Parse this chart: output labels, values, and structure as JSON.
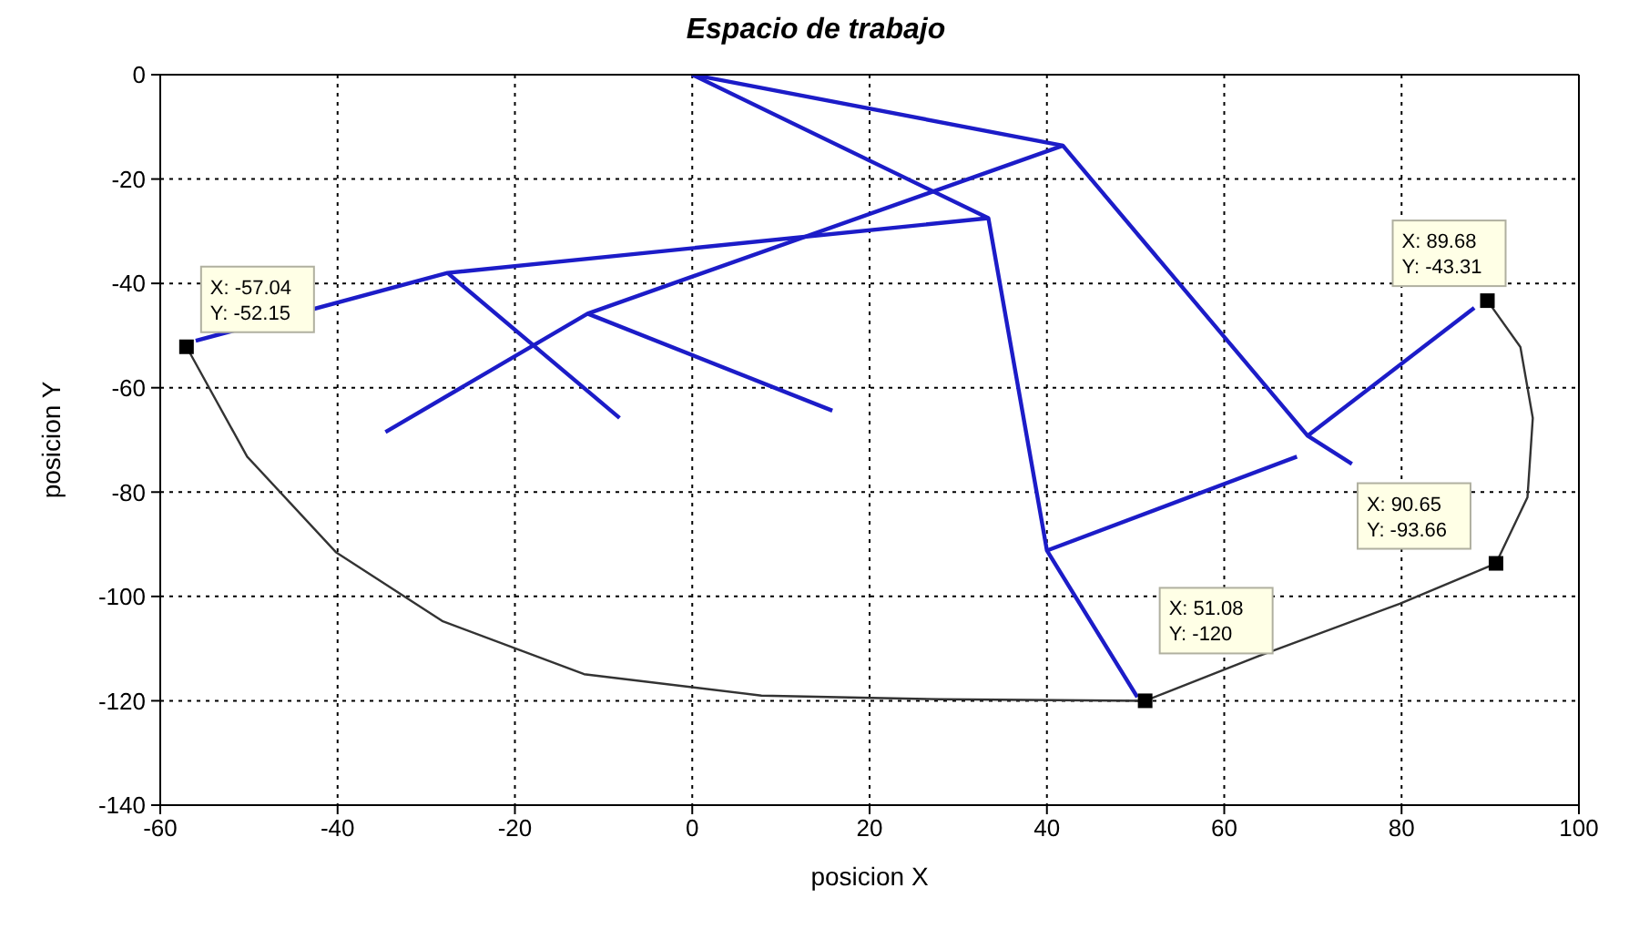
{
  "chart_data": {
    "type": "line",
    "title": "Espacio de trabajo",
    "xlabel": "posicion X",
    "ylabel": "posicion Y",
    "xlim": [
      -60,
      100
    ],
    "xticks": [
      -60,
      -40,
      -20,
      0,
      20,
      40,
      60,
      80,
      100
    ],
    "ylim": [
      -140,
      0
    ],
    "yticks": [
      -140,
      -120,
      -100,
      -80,
      -60,
      -40,
      -20,
      0
    ],
    "grid": true,
    "series": [
      {
        "color": "#1c1cc8",
        "x": [
          0,
          33.4,
          40,
          50.2
        ],
        "values": [
          0,
          -27.5,
          -91.2,
          -119.3
        ]
      },
      {
        "type": "line",
        "color": "#1c1cc8",
        "x": [
          40,
          68.2
        ],
        "values": [
          -91.2,
          -73.2
        ]
      },
      {
        "type": "line",
        "color": "#1c1cc8",
        "x": [
          0,
          41.8,
          69.4,
          74.4
        ],
        "values": [
          0,
          -13.6,
          -69.2,
          -74.6
        ]
      },
      {
        "type": "line",
        "color": "#1c1cc8",
        "x": [
          69.4,
          88.2
        ],
        "values": [
          -69.2,
          -44.7
        ]
      },
      {
        "type": "line",
        "color": "#1c1cc8",
        "x": [
          41.8,
          -11.8,
          -34.6
        ],
        "values": [
          -13.6,
          -45.8,
          -68.5
        ]
      },
      {
        "type": "line",
        "color": "#1c1cc8",
        "x": [
          -11.8,
          15.8
        ],
        "values": [
          -45.8,
          -64.4
        ]
      },
      {
        "type": "line",
        "color": "#1c1cc8",
        "x": [
          33.4,
          -27.6,
          -56
        ],
        "values": [
          -27.5,
          -38,
          -51
        ]
      },
      {
        "type": "line",
        "color": "#1c1cc8",
        "x": [
          -27.6,
          -8.2
        ],
        "values": [
          -38,
          -65.8
        ]
      },
      {
        "type": "line",
        "color": "#333333",
        "x": [
          -57.04,
          -50.2,
          -40.2,
          -28.2,
          -12.2,
          7.8,
          27.8,
          51.08,
          63.8,
          79.8,
          90.65,
          94.2,
          94.8,
          93.4,
          89.68
        ],
        "values": [
          -52.15,
          -73.2,
          -91.5,
          -104.7,
          -114.9,
          -119,
          -119.7,
          -120,
          -111.5,
          -101.4,
          -93.66,
          -81,
          -65.8,
          -52.2,
          -43.31
        ]
      },
      {
        "type": "scatter",
        "color": "#000000",
        "marker": "square",
        "x": [
          -57.04,
          89.68,
          90.65,
          51.08
        ],
        "values": [
          -52.15,
          -43.31,
          -93.66,
          -120
        ]
      }
    ],
    "annotations": [
      {
        "text": "X: -57.04\nY: -52.15",
        "x": -57.04,
        "y": -52.15
      },
      {
        "text": "X: 89.68\nY: -43.31",
        "x": 89.68,
        "y": -43.31
      },
      {
        "text": "X: 90.65\nY: -93.66",
        "x": 90.65,
        "y": -93.66
      },
      {
        "text": "X: 51.08\nY: -120",
        "x": 51.08,
        "y": -120
      }
    ]
  }
}
